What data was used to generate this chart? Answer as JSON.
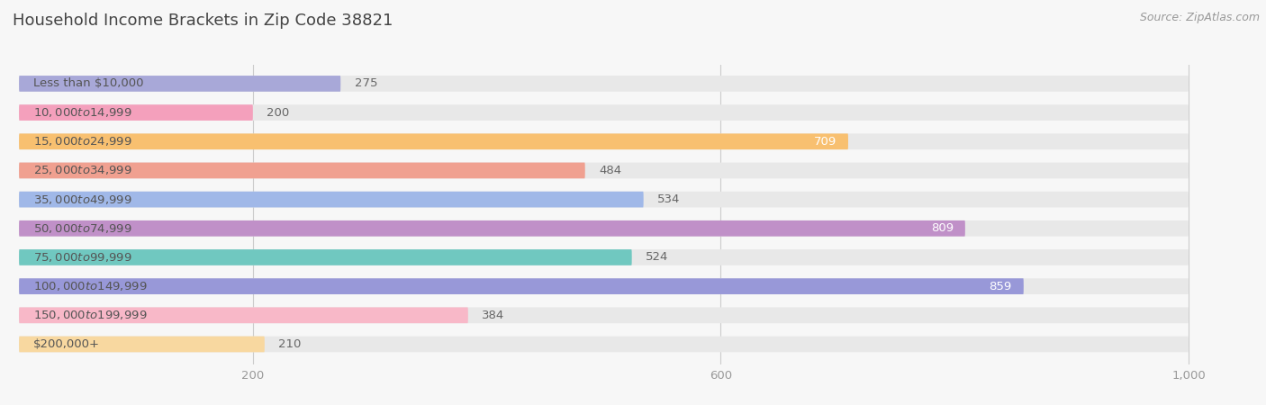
{
  "title": "Household Income Brackets in Zip Code 38821",
  "source": "Source: ZipAtlas.com",
  "categories": [
    "Less than $10,000",
    "$10,000 to $14,999",
    "$15,000 to $24,999",
    "$25,000 to $34,999",
    "$35,000 to $49,999",
    "$50,000 to $74,999",
    "$75,000 to $99,999",
    "$100,000 to $149,999",
    "$150,000 to $199,999",
    "$200,000+"
  ],
  "values": [
    275,
    200,
    709,
    484,
    534,
    809,
    524,
    859,
    384,
    210
  ],
  "bar_colors": [
    "#a8a8d8",
    "#f4a0bc",
    "#f8c070",
    "#f0a090",
    "#a0b8e8",
    "#c090c8",
    "#70c8c0",
    "#9898d8",
    "#f8b8c8",
    "#f8d8a0"
  ],
  "bar_bg_color": "#e8e8e8",
  "xlim_max": 1050,
  "bg_bar_max": 1000,
  "xticks": [
    0,
    200,
    600,
    1000
  ],
  "xtick_labels": [
    "",
    "200",
    "600",
    "1,000"
  ],
  "background_color": "#f7f7f7",
  "title_fontsize": 13,
  "label_fontsize": 9.5,
  "value_fontsize": 9.5,
  "tick_fontsize": 9.5,
  "value_label_inside_threshold": 580
}
